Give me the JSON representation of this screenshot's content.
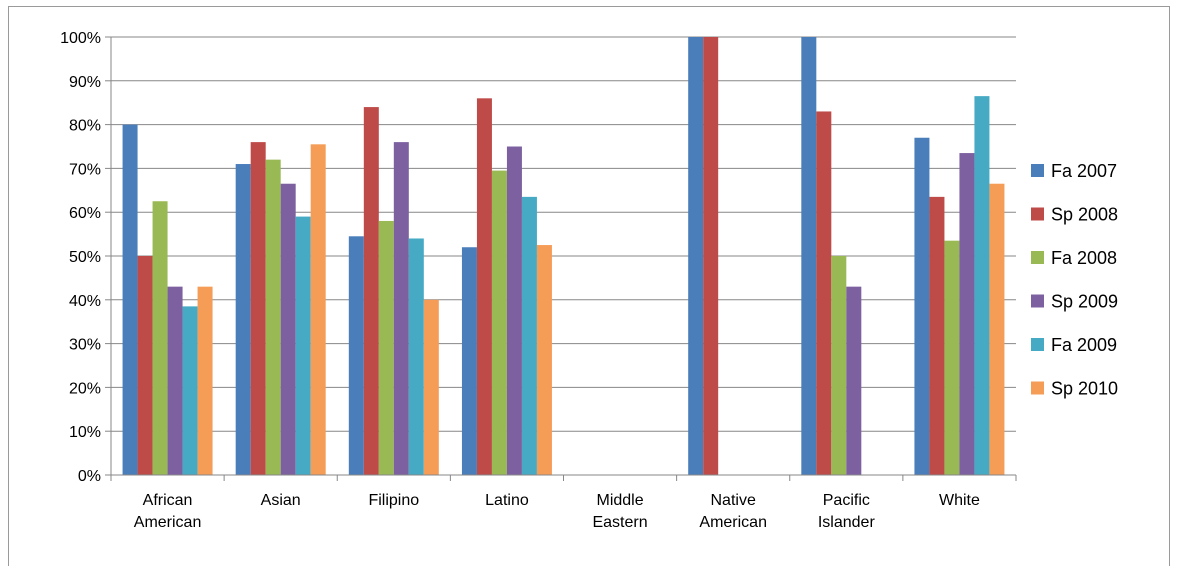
{
  "chart_data": {
    "type": "bar",
    "categories": [
      [
        "African",
        "American"
      ],
      [
        "Asian"
      ],
      [
        "Filipino"
      ],
      [
        "Latino"
      ],
      [
        "Middle",
        "Eastern"
      ],
      [
        "Native",
        "American"
      ],
      [
        "Pacific",
        "Islander"
      ],
      [
        "White"
      ]
    ],
    "series": [
      {
        "name": "Fa 2007",
        "color": "#4a7ebb",
        "values": [
          80,
          71,
          54.5,
          52,
          0,
          100,
          100,
          77
        ]
      },
      {
        "name": "Sp 2008",
        "color": "#be4b48",
        "values": [
          50,
          76,
          84,
          86,
          0,
          100,
          83,
          63.5
        ]
      },
      {
        "name": "Fa 2008",
        "color": "#98b954",
        "values": [
          62.5,
          72,
          58,
          69.5,
          0,
          0,
          50,
          53.5
        ]
      },
      {
        "name": "Sp 2009",
        "color": "#7d60a0",
        "values": [
          43,
          66.5,
          76,
          75,
          0,
          0,
          43,
          73.5
        ]
      },
      {
        "name": "Fa 2009",
        "color": "#46aac5",
        "values": [
          38.5,
          59,
          54,
          63.5,
          0,
          0,
          0,
          86.5
        ]
      },
      {
        "name": "Sp 2010",
        "color": "#f59d56",
        "values": [
          43,
          75.5,
          40,
          52.5,
          0,
          0,
          0,
          66.5
        ]
      }
    ],
    "y_ticks": [
      "0%",
      "10%",
      "20%",
      "30%",
      "40%",
      "50%",
      "60%",
      "70%",
      "80%",
      "90%",
      "100%"
    ],
    "ylim": [
      0,
      100
    ],
    "grid": true,
    "legend_position": "right",
    "xlabel": "",
    "ylabel": ""
  }
}
